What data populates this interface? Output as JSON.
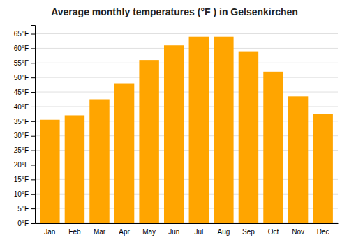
{
  "chart_data": {
    "type": "bar",
    "title": "Average monthly temperatures (°F ) in Gelsenkirchen",
    "categories": [
      "Jan",
      "Feb",
      "Mar",
      "Apr",
      "May",
      "Jun",
      "Jul",
      "Aug",
      "Sep",
      "Oct",
      "Nov",
      "Dec"
    ],
    "values": [
      35.5,
      37.0,
      42.5,
      48.0,
      56.0,
      61.0,
      64.0,
      64.0,
      59.0,
      52.0,
      43.5,
      37.5
    ],
    "color": "#FFA500",
    "ylim": [
      0,
      68
    ],
    "yticks": [
      {
        "value": 0,
        "label": "0°F"
      },
      {
        "value": 5,
        "label": "5°F"
      },
      {
        "value": 10,
        "label": "10°F"
      },
      {
        "value": 15,
        "label": "15°F"
      },
      {
        "value": 20,
        "label": "20°F"
      },
      {
        "value": 25,
        "label": "25°F"
      },
      {
        "value": 30,
        "label": "30°F"
      },
      {
        "value": 35,
        "label": "35°F"
      },
      {
        "value": 40,
        "label": "40°F"
      },
      {
        "value": 45,
        "label": "45°F"
      },
      {
        "value": 50,
        "label": "50°F"
      },
      {
        "value": 55,
        "label": "55°F"
      },
      {
        "value": 60,
        "label": "60°F"
      },
      {
        "value": 65,
        "label": "65°F"
      }
    ],
    "grid": true
  }
}
